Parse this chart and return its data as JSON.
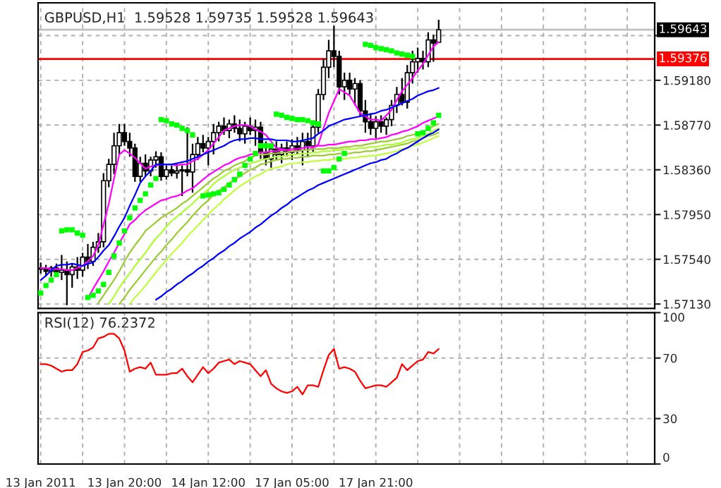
{
  "chart_data": [
    {
      "type": "candlestick",
      "title": "GBPUSD,H1  1.59528 1.59735 1.59528 1.59643",
      "categories": [
        null,
        null,
        null,
        null,
        null,
        null,
        null,
        null,
        null,
        null,
        null,
        null,
        null,
        null,
        null,
        null,
        null,
        null,
        null,
        null,
        null,
        null,
        null,
        null,
        null,
        null,
        null,
        null,
        null,
        null,
        null,
        null,
        null,
        null,
        null,
        null,
        null,
        null,
        null,
        null,
        null,
        null,
        null,
        null,
        null,
        null,
        null,
        null,
        null,
        null,
        null,
        null,
        null,
        null,
        null,
        null,
        null,
        null,
        null,
        null,
        null,
        null,
        null,
        null,
        null,
        null,
        null,
        null,
        null,
        null,
        null,
        null,
        null,
        null,
        null,
        null,
        null,
        null,
        null,
        null,
        null,
        null,
        null,
        null,
        null,
        null,
        null,
        null,
        null,
        null,
        null,
        null,
        null,
        null,
        null,
        null,
        null,
        null,
        null,
        null,
        null,
        null,
        null,
        null,
        null,
        null,
        null,
        null,
        null,
        null,
        null,
        null,
        null,
        null,
        null,
        null,
        null,
        null
      ],
      "ohlc": [
        [
          1.5746,
          1.5751,
          1.5741,
          1.5745
        ],
        [
          1.5745,
          1.5749,
          1.5739,
          1.5743
        ],
        [
          1.5743,
          1.5748,
          1.5738,
          1.5746
        ],
        [
          1.5746,
          1.575,
          1.574,
          1.5742
        ],
        [
          1.5742,
          1.5758,
          1.5735,
          1.5744
        ],
        [
          1.5744,
          1.5752,
          1.5712,
          1.574
        ],
        [
          1.574,
          1.575,
          1.5728,
          1.5747
        ],
        [
          1.5747,
          1.5756,
          1.5736,
          1.5744
        ],
        [
          1.5744,
          1.576,
          1.5738,
          1.5756
        ],
        [
          1.5756,
          1.5768,
          1.5745,
          1.5752
        ],
        [
          1.5752,
          1.577,
          1.5748,
          1.5765
        ],
        [
          1.5765,
          1.5778,
          1.576,
          1.577
        ],
        [
          1.577,
          1.5833,
          1.5765,
          1.5826
        ],
        [
          1.5826,
          1.5846,
          1.582,
          1.5841
        ],
        [
          1.5841,
          1.587,
          1.5832,
          1.5858
        ],
        [
          1.5858,
          1.5878,
          1.585,
          1.587
        ],
        [
          1.587,
          1.5878,
          1.5858,
          1.5862
        ],
        [
          1.5862,
          1.587,
          1.5848,
          1.5856
        ],
        [
          1.5856,
          1.586,
          1.5825,
          1.583
        ],
        [
          1.583,
          1.5848,
          1.5825,
          1.5842
        ],
        [
          1.5842,
          1.585,
          1.583,
          1.5835
        ],
        [
          1.5835,
          1.5848,
          1.583,
          1.5845
        ],
        [
          1.5845,
          1.5853,
          1.5838,
          1.5848
        ],
        [
          1.5848,
          1.5852,
          1.5826,
          1.583
        ],
        [
          1.583,
          1.584,
          1.5827,
          1.5836
        ],
        [
          1.5836,
          1.584,
          1.583,
          1.5833
        ],
        [
          1.5833,
          1.5842,
          1.5828,
          1.5835
        ],
        [
          1.5835,
          1.584,
          1.5812,
          1.5836
        ],
        [
          1.5836,
          1.5875,
          1.583,
          1.5834
        ],
        [
          1.5834,
          1.586,
          1.5815,
          1.585
        ],
        [
          1.585,
          1.5866,
          1.5845,
          1.586
        ],
        [
          1.586,
          1.5868,
          1.5852,
          1.5856
        ],
        [
          1.5856,
          1.5866,
          1.584,
          1.5862
        ],
        [
          1.5862,
          1.5878,
          1.585,
          1.587
        ],
        [
          1.587,
          1.588,
          1.5862,
          1.5876
        ],
        [
          1.5876,
          1.5884,
          1.5868,
          1.5872
        ],
        [
          1.5872,
          1.5882,
          1.5865,
          1.5878
        ],
        [
          1.5878,
          1.5886,
          1.587,
          1.5874
        ],
        [
          1.5874,
          1.5882,
          1.5862,
          1.5869
        ],
        [
          1.5869,
          1.588,
          1.586,
          1.5876
        ],
        [
          1.5876,
          1.5884,
          1.5868,
          1.5872
        ],
        [
          1.5872,
          1.5882,
          1.5858,
          1.5875
        ],
        [
          1.5875,
          1.588,
          1.5846,
          1.5852
        ],
        [
          1.5852,
          1.5862,
          1.584,
          1.5846
        ],
        [
          1.5846,
          1.5858,
          1.5838,
          1.5855
        ],
        [
          1.5855,
          1.5862,
          1.5845,
          1.585
        ],
        [
          1.585,
          1.586,
          1.5842,
          1.5856
        ],
        [
          1.5856,
          1.5862,
          1.5848,
          1.5852
        ],
        [
          1.5852,
          1.5864,
          1.5845,
          1.5858
        ],
        [
          1.5858,
          1.5866,
          1.585,
          1.5854
        ],
        [
          1.5854,
          1.587,
          1.584,
          1.5862
        ],
        [
          1.5862,
          1.587,
          1.5848,
          1.5858
        ],
        [
          1.5858,
          1.5878,
          1.5852,
          1.5875
        ],
        [
          1.5875,
          1.591,
          1.587,
          1.5905
        ],
        [
          1.5905,
          1.5938,
          1.59,
          1.593
        ],
        [
          1.593,
          1.5955,
          1.592,
          1.5945
        ],
        [
          1.5945,
          1.5968,
          1.593,
          1.594
        ],
        [
          1.594,
          1.5945,
          1.5905,
          1.5912
        ],
        [
          1.5912,
          1.5925,
          1.59,
          1.5918
        ],
        [
          1.5918,
          1.5925,
          1.5905,
          1.591
        ],
        [
          1.591,
          1.592,
          1.5895,
          1.5915
        ],
        [
          1.5915,
          1.5918,
          1.5885,
          1.589
        ],
        [
          1.589,
          1.59,
          1.587,
          1.588
        ],
        [
          1.588,
          1.5888,
          1.5868,
          1.5874
        ],
        [
          1.5874,
          1.5885,
          1.5865,
          1.588
        ],
        [
          1.588,
          1.5886,
          1.587,
          1.5876
        ],
        [
          1.5876,
          1.5884,
          1.5868,
          1.5882
        ],
        [
          1.5882,
          1.59,
          1.5876,
          1.5895
        ],
        [
          1.5895,
          1.5912,
          1.5888,
          1.5905
        ],
        [
          1.5905,
          1.592,
          1.5895,
          1.5898
        ],
        [
          1.5898,
          1.5932,
          1.5892,
          1.5925
        ],
        [
          1.5925,
          1.5945,
          1.5915,
          1.5935
        ],
        [
          1.5935,
          1.5948,
          1.5925,
          1.5938
        ],
        [
          1.5938,
          1.5945,
          1.5928,
          1.5935
        ],
        [
          1.5935,
          1.5962,
          1.593,
          1.5955
        ],
        [
          1.5955,
          1.596,
          1.5935,
          1.5952
        ],
        [
          1.59528,
          1.59735,
          1.59528,
          1.59643
        ],
        null,
        null,
        null,
        null,
        null,
        null,
        null,
        null,
        null,
        null,
        null,
        null,
        null,
        null,
        null,
        null,
        null,
        null,
        null,
        null,
        null,
        null,
        null,
        null,
        null,
        null,
        null,
        null,
        null,
        null,
        null,
        null,
        null,
        null,
        null,
        null,
        null,
        null,
        null,
        null,
        null
      ],
      "series": [
        {
          "type": "line",
          "color": "#ff00ff",
          "values": [
            1.5746,
            1.5746,
            1.5745,
            1.5745,
            1.5745,
            1.5744,
            1.5744,
            1.5746,
            1.5748,
            1.5752,
            1.5757,
            1.5767,
            1.5786,
            1.5805,
            1.5828,
            1.585,
            1.5854,
            1.5851,
            1.5847,
            1.5842,
            1.5837,
            1.5839,
            1.584,
            1.5841,
            1.5841,
            1.5841,
            1.584,
            1.5841,
            1.5841,
            1.5844,
            1.5846,
            1.585,
            1.5854,
            1.586,
            1.5866,
            1.5872,
            1.5874,
            1.5876,
            1.5877,
            1.5877,
            1.5876,
            1.5873,
            1.5871,
            1.5868,
            1.5862,
            1.5856,
            1.5855,
            1.5854,
            1.5853,
            1.5853,
            1.5854,
            1.5854,
            1.5856,
            1.5859,
            1.5874,
            1.5888,
            1.5899,
            1.591,
            1.5907,
            1.5904,
            1.5896,
            1.5888,
            1.5885,
            1.5882,
            1.5882,
            1.5881,
            1.5886,
            1.5891,
            1.59,
            1.5908,
            1.5914,
            1.592,
            1.5927,
            1.5933,
            1.5941,
            1.5949,
            1.5953,
            null,
            null,
            null,
            null,
            null,
            null,
            null,
            null,
            null,
            null,
            null,
            null,
            null,
            null,
            null,
            null,
            null,
            null,
            null,
            null,
            null,
            null,
            null,
            null,
            null,
            null,
            null,
            null,
            null,
            null,
            null,
            null,
            null,
            null,
            null,
            null,
            null,
            null,
            null,
            null,
            null
          ]
        },
        {
          "type": "line",
          "color": "#0000ff",
          "values": [
            1.5735,
            1.5739,
            1.5744,
            1.5748,
            1.5749,
            1.5749,
            1.575,
            1.5749,
            1.5748,
            1.575,
            1.5751,
            1.5756,
            1.5762,
            1.5767,
            1.5775,
            1.5784,
            1.5792,
            1.5803,
            1.5813,
            1.5824,
            1.583,
            1.5835,
            1.5841,
            1.5841,
            1.5841,
            1.5841,
            1.5842,
            1.5843,
            1.5844,
            1.5846,
            1.5848,
            1.585,
            1.5852,
            1.5854,
            1.5856,
            1.5858,
            1.5861,
            1.5863,
            1.5864,
            1.5864,
            1.5865,
            1.5865,
            1.5864,
            1.5864,
            1.5864,
            1.5863,
            1.5863,
            1.5863,
            1.5862,
            1.5862,
            1.5863,
            1.5864,
            1.5865,
            1.5869,
            1.5872,
            1.5876,
            1.5878,
            1.588,
            1.5882,
            1.5883,
            1.5884,
            1.5885,
            1.5886,
            1.5887,
            1.5888,
            1.589,
            1.5891,
            1.5893,
            1.5895,
            1.5897,
            1.5899,
            1.5901,
            1.5904,
            1.5906,
            1.5908,
            1.5909,
            1.5911,
            null,
            null,
            null,
            null,
            null,
            null,
            null,
            null,
            null,
            null,
            null,
            null,
            null,
            null,
            null,
            null,
            null,
            null,
            null,
            null,
            null,
            null,
            null,
            null,
            null,
            null,
            null,
            null,
            null,
            null,
            null,
            null,
            null,
            null,
            null,
            null,
            null,
            null,
            null,
            null,
            null
          ]
        },
        {
          "type": "line",
          "color": "#ff00ff",
          "values": [
            null,
            null,
            null,
            null,
            null,
            null,
            null,
            null,
            null,
            1.5718,
            1.5727,
            1.5735,
            1.5743,
            1.5752,
            1.576,
            1.5769,
            1.5777,
            1.5786,
            1.579,
            1.5795,
            1.5799,
            1.5802,
            1.5805,
            1.5808,
            1.5809,
            1.5811,
            1.5812,
            1.5814,
            1.5817,
            1.5819,
            1.5823,
            1.5827,
            1.5831,
            1.5834,
            1.5837,
            1.584,
            1.5842,
            1.5845,
            1.5847,
            1.5848,
            1.585,
            1.5851,
            1.5852,
            1.5852,
            1.5853,
            1.5853,
            1.5854,
            1.5854,
            1.5855,
            1.5855,
            1.5856,
            1.5857,
            1.5857,
            1.5858,
            1.5858,
            1.5859,
            1.5859,
            1.586,
            1.5861,
            1.5862,
            1.5862,
            1.5863,
            1.5863,
            1.5864,
            1.5864,
            1.5865,
            1.5866,
            1.5868,
            1.5869,
            1.5871,
            1.5872,
            1.5874,
            1.5876,
            1.5879,
            1.5881,
            1.5883,
            1.5885,
            null,
            null,
            null,
            null,
            null,
            null,
            null,
            null,
            null,
            null,
            null,
            null,
            null,
            null,
            null,
            null,
            null,
            null,
            null,
            null,
            null,
            null,
            null,
            null,
            null,
            null,
            null,
            null,
            null,
            null,
            null,
            null,
            null,
            null,
            null,
            null,
            null,
            null,
            null,
            null,
            null
          ]
        },
        {
          "type": "line",
          "color": "#9acd32",
          "values": [
            null,
            null,
            null,
            null,
            null,
            null,
            null,
            null,
            null,
            null,
            null,
            1.5714,
            1.5721,
            1.5728,
            1.5735,
            1.5743,
            1.5752,
            1.576,
            1.5767,
            1.5773,
            1.578,
            1.5784,
            1.5788,
            1.5792,
            1.5795,
            1.5798,
            1.5801,
            1.5805,
            1.5808,
            1.5812,
            1.5816,
            1.582,
            1.5824,
            1.5828,
            1.5831,
            1.5835,
            1.5837,
            1.584,
            1.5842,
            1.5844,
            1.5847,
            1.5849,
            1.585,
            1.585,
            1.5851,
            1.5851,
            1.5852,
            1.5852,
            1.5853,
            1.5853,
            1.5854,
            1.5854,
            1.5855,
            1.5855,
            1.5855,
            1.5856,
            1.5856,
            1.5856,
            1.5857,
            1.5857,
            1.5858,
            1.5858,
            1.5859,
            1.586,
            1.5861,
            1.5862,
            1.5862,
            1.5863,
            1.5864,
            1.5865,
            1.5867,
            1.5868,
            1.5869,
            1.5871,
            1.5873,
            1.5876,
            1.5878,
            null,
            null,
            null,
            null,
            null,
            null,
            null,
            null,
            null,
            null,
            null,
            null,
            null,
            null,
            null,
            null,
            null,
            null,
            null,
            null,
            null,
            null,
            null,
            null,
            null,
            null,
            null,
            null,
            null,
            null,
            null,
            null,
            null,
            null,
            null,
            null,
            null,
            null,
            null,
            null,
            null
          ]
        },
        {
          "type": "line",
          "color": "#adff2f",
          "values": [
            null,
            null,
            null,
            null,
            null,
            null,
            null,
            null,
            null,
            null,
            null,
            null,
            null,
            1.5713,
            1.572,
            1.5728,
            1.5735,
            1.5741,
            1.5748,
            1.5754,
            1.576,
            1.5767,
            1.5773,
            1.5778,
            1.5784,
            1.5789,
            1.5793,
            1.5797,
            1.5801,
            1.5805,
            1.581,
            1.5814,
            1.5818,
            1.5823,
            1.5827,
            1.583,
            1.5833,
            1.5836,
            1.5838,
            1.584,
            1.5842,
            1.5843,
            1.5845,
            1.5846,
            1.5847,
            1.5848,
            1.5848,
            1.5849,
            1.585,
            1.585,
            1.5851,
            1.5851,
            1.5852,
            1.5852,
            1.5853,
            1.5853,
            1.5854,
            1.5854,
            1.5855,
            1.5855,
            1.5855,
            1.5856,
            1.5856,
            1.5857,
            1.5857,
            1.5858,
            1.5859,
            1.5859,
            1.586,
            1.5861,
            1.5863,
            1.5864,
            1.5865,
            1.5867,
            1.5869,
            1.5872,
            1.5874,
            null,
            null,
            null,
            null,
            null,
            null,
            null,
            null,
            null,
            null,
            null,
            null,
            null,
            null,
            null,
            null,
            null,
            null,
            null,
            null,
            null,
            null,
            null,
            null,
            null,
            null,
            null,
            null,
            null,
            null,
            null,
            null,
            null,
            null,
            null,
            null,
            null,
            null,
            null,
            null,
            null
          ]
        },
        {
          "type": "line",
          "color": "#9acd32",
          "values": [
            null,
            null,
            null,
            null,
            null,
            null,
            null,
            null,
            null,
            null,
            null,
            null,
            null,
            null,
            null,
            1.5713,
            1.5719,
            1.5726,
            1.5732,
            1.5738,
            1.5744,
            1.575,
            1.5756,
            1.5761,
            1.5767,
            1.5772,
            1.5778,
            1.5783,
            1.5788,
            1.5794,
            1.5799,
            1.5804,
            1.5808,
            1.5813,
            1.5817,
            1.582,
            1.5824,
            1.5827,
            1.583,
            1.5833,
            1.5836,
            1.5838,
            1.5841,
            1.5842,
            1.5844,
            1.5845,
            1.5846,
            1.5846,
            1.5847,
            1.5847,
            1.5848,
            1.5848,
            1.5849,
            1.5849,
            1.5849,
            1.585,
            1.585,
            1.5851,
            1.5851,
            1.5851,
            1.5852,
            1.5852,
            1.5853,
            1.5853,
            1.5854,
            1.5855,
            1.5856,
            1.5857,
            1.5858,
            1.5859,
            1.586,
            1.5862,
            1.5863,
            1.5865,
            1.5867,
            1.5868,
            1.587,
            null,
            null,
            null,
            null,
            null,
            null,
            null,
            null,
            null,
            null,
            null,
            null,
            null,
            null,
            null,
            null,
            null,
            null,
            null,
            null,
            null,
            null,
            null,
            null,
            null,
            null,
            null,
            null,
            null,
            null,
            null,
            null,
            null,
            null,
            null,
            null,
            null,
            null,
            null,
            null,
            null
          ]
        },
        {
          "type": "line",
          "color": "#c0ff3e",
          "values": [
            null,
            null,
            null,
            null,
            null,
            null,
            null,
            null,
            null,
            null,
            null,
            null,
            null,
            null,
            null,
            null,
            null,
            1.5713,
            1.5719,
            1.5724,
            1.573,
            1.5736,
            1.5742,
            1.5748,
            1.5753,
            1.5759,
            1.5764,
            1.5769,
            1.5775,
            1.578,
            1.5785,
            1.579,
            1.5795,
            1.58,
            1.5804,
            1.5809,
            1.5813,
            1.5817,
            1.5821,
            1.5824,
            1.5827,
            1.583,
            1.5832,
            1.5835,
            1.5837,
            1.5838,
            1.5839,
            1.5841,
            1.5842,
            1.5842,
            1.5843,
            1.5843,
            1.5844,
            1.5844,
            1.5845,
            1.5845,
            1.5846,
            1.5846,
            1.5846,
            1.5847,
            1.5847,
            1.5848,
            1.5848,
            1.5849,
            1.5849,
            1.585,
            1.5851,
            1.5852,
            1.5853,
            1.5855,
            1.5856,
            1.5858,
            1.5859,
            1.5861,
            1.5863,
            1.5865,
            1.5867,
            null,
            null,
            null,
            null,
            null,
            null,
            null,
            null,
            null,
            null,
            null,
            null,
            null,
            null,
            null,
            null,
            null,
            null,
            null,
            null,
            null,
            null,
            null,
            null,
            null,
            null,
            null,
            null,
            null,
            null,
            null,
            null,
            null,
            null,
            null,
            null,
            null,
            null,
            null,
            null,
            null
          ]
        },
        {
          "type": "line",
          "color": "#0000ff",
          "values": [
            null,
            null,
            null,
            null,
            null,
            null,
            null,
            null,
            null,
            null,
            null,
            null,
            null,
            null,
            null,
            null,
            null,
            null,
            null,
            null,
            null,
            null,
            1.5717,
            1.572,
            1.5724,
            1.5727,
            1.5731,
            1.5734,
            1.5738,
            1.5741,
            1.5745,
            1.5748,
            1.5752,
            1.5755,
            1.5759,
            1.5762,
            1.5766,
            1.5769,
            1.5773,
            1.5776,
            1.5779,
            1.5783,
            1.5786,
            1.579,
            1.5794,
            1.5797,
            1.5801,
            1.5804,
            1.5808,
            1.5811,
            1.5814,
            1.5817,
            1.5819,
            1.5822,
            1.5824,
            1.5826,
            1.5828,
            1.583,
            1.5832,
            1.5834,
            1.5836,
            1.5838,
            1.584,
            1.5842,
            1.5843,
            1.5845,
            1.5846,
            1.5849,
            1.5851,
            1.5854,
            1.5856,
            1.5859,
            1.5862,
            1.5865,
            1.5868,
            1.587,
            1.5873,
            null,
            null,
            null,
            null,
            null,
            null,
            null,
            null,
            null,
            null,
            null,
            null,
            null,
            null,
            null,
            null,
            null,
            null,
            null,
            null,
            null,
            null,
            null,
            null,
            null,
            null,
            null,
            null,
            null,
            null,
            null,
            null,
            null,
            null,
            null,
            null,
            null,
            null,
            null,
            null,
            null
          ]
        },
        {
          "type": "scatter",
          "color": "#00ff00",
          "marker": "square",
          "values": [
            1.5723,
            1.573,
            1.5735,
            1.574,
            1.578,
            1.5781,
            1.5781,
            1.5778,
            1.5776,
            1.5719,
            1.5721,
            1.5725,
            1.5731,
            1.5742,
            1.5757,
            1.5769,
            1.578,
            1.5792,
            1.5801,
            1.5808,
            1.5814,
            1.5822,
            1.5828,
            1.5882,
            1.5881,
            1.5878,
            1.5877,
            1.5874,
            1.5872,
            1.5868,
            null,
            1.5812,
            1.5813,
            1.5814,
            1.5815,
            1.5818,
            1.5822,
            1.5827,
            1.5832,
            1.584,
            1.5846,
            1.5851,
            1.5858,
            1.5858,
            1.5858,
            1.5887,
            1.5886,
            1.5884,
            1.5883,
            1.5882,
            1.5882,
            1.5881,
            1.5879,
            1.5878,
            1.5835,
            1.5835,
            1.5838,
            1.5846,
            1.5851,
            null,
            null,
            null,
            1.5951,
            1.595,
            1.5948,
            1.5947,
            1.5946,
            1.5945,
            1.5943,
            1.5942,
            1.5941,
            1.594,
            1.5869,
            1.587,
            1.5874,
            1.5879,
            1.5886,
            null,
            null,
            null,
            null,
            null,
            null,
            null,
            null,
            null,
            null,
            null,
            null,
            null,
            null,
            null,
            null,
            null,
            null,
            null,
            null,
            null,
            null,
            null,
            null,
            null,
            null,
            null,
            null,
            null,
            null,
            null,
            null,
            null,
            null,
            null,
            null,
            null,
            null,
            null,
            null,
            null
          ]
        }
      ],
      "ref_lines": [
        {
          "axis": "y",
          "value": 1.59643,
          "label": "1.59643",
          "color": "#c0c0c0"
        },
        {
          "axis": "y",
          "value": 1.59376,
          "label": "1.59376",
          "color": "#ff0000"
        }
      ],
      "ylim": [
        1.5709,
        1.5989
      ],
      "yticks": [
        {
          "value": 1.5713,
          "label": "1.57130"
        },
        {
          "value": 1.5754,
          "label": "1.57540"
        },
        {
          "value": 1.5795,
          "label": "1.57950"
        },
        {
          "value": 1.5836,
          "label": "1.58360"
        },
        {
          "value": 1.5877,
          "label": "1.58770"
        },
        {
          "value": 1.5918,
          "label": "1.59180"
        },
        {
          "value": 1.5959,
          "label": null
        }
      ],
      "grid": true,
      "tick_labels": "y"
    },
    {
      "type": "line",
      "title": "RSI(12) 76.2372",
      "categories": [
        "13 Jan 2011",
        null,
        null,
        null,
        null,
        null,
        null,
        null,
        null,
        null,
        null,
        null,
        null,
        null,
        null,
        null,
        "13 Jan 20:00",
        null,
        null,
        null,
        null,
        null,
        null,
        null,
        null,
        null,
        null,
        null,
        null,
        null,
        null,
        null,
        "14 Jan 12:00",
        null,
        null,
        null,
        null,
        null,
        null,
        null,
        null,
        null,
        null,
        null,
        null,
        null,
        null,
        null,
        "17 Jan 05:00",
        null,
        null,
        null,
        null,
        null,
        null,
        null,
        null,
        null,
        null,
        null,
        null,
        null,
        null,
        null,
        "17 Jan 21:00",
        null,
        null,
        null,
        null,
        null,
        null,
        null,
        null,
        null,
        null,
        null,
        null,
        null,
        null,
        null,
        null,
        null,
        null,
        null,
        null,
        null,
        null,
        null,
        null,
        null,
        null,
        null,
        null,
        null,
        null,
        null,
        null,
        null,
        null,
        null,
        null,
        null,
        null,
        null,
        null,
        null,
        null,
        null,
        null,
        null,
        null,
        null,
        null,
        null,
        null,
        null,
        null,
        null
      ],
      "series": [
        {
          "color": "#ff0000",
          "values": [
            66,
            66,
            65,
            63,
            61,
            62,
            62,
            66,
            74,
            75,
            77,
            83,
            84,
            86,
            86,
            83,
            75,
            61,
            63,
            64,
            63,
            67,
            59,
            59,
            59,
            60,
            60,
            63,
            58,
            54,
            59,
            64,
            60,
            63,
            67,
            68,
            69,
            66,
            68,
            67,
            66,
            62,
            58,
            62,
            53,
            50,
            48,
            47,
            48,
            51,
            46,
            52,
            52,
            51,
            62,
            72,
            76,
            63,
            64,
            63,
            61,
            55,
            50,
            51,
            52,
            52,
            51,
            54,
            57,
            66,
            62,
            65,
            68,
            69,
            74,
            73,
            76,
            null,
            null,
            null,
            null,
            null,
            null,
            null,
            null,
            null,
            null,
            null,
            null,
            null,
            null,
            null,
            null,
            null,
            null,
            null,
            null,
            null,
            null,
            null,
            null,
            null,
            null,
            null,
            null,
            null,
            null,
            null,
            null,
            null,
            null,
            null,
            null,
            null,
            null,
            null,
            null,
            null
          ]
        }
      ],
      "ylim": [
        0,
        100
      ],
      "yticks": [
        0,
        30,
        70,
        100
      ],
      "grid": true
    }
  ]
}
